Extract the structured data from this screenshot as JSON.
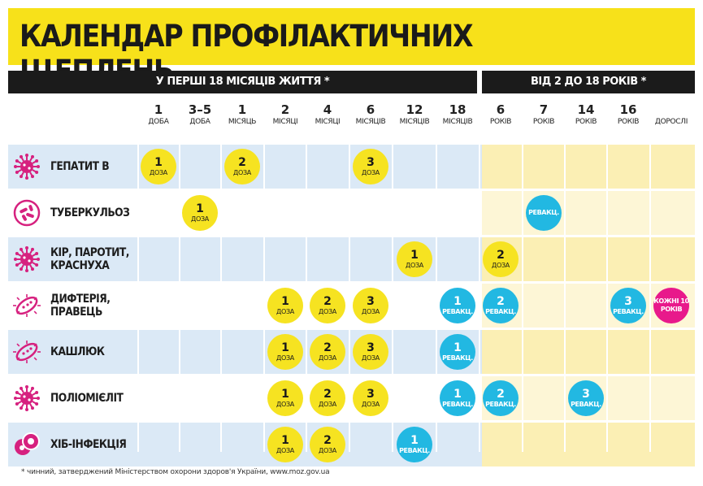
{
  "title": "КАЛЕНДАР ПРОФІЛАКТИЧНИХ ЩЕПЛЕНЬ",
  "sections": {
    "first": "У ПЕРШІ 18 МІСЯЦІВ ЖИТТЯ *",
    "second": "ВІД 2 ДО 18 РОКІВ *"
  },
  "columns": [
    {
      "num": "1",
      "unit": "ДОБА"
    },
    {
      "num": "3–5",
      "unit": "ДОБА"
    },
    {
      "num": "1",
      "unit": "МІСЯЦЬ"
    },
    {
      "num": "2",
      "unit": "МІСЯЦІ"
    },
    {
      "num": "4",
      "unit": "МІСЯЦІ"
    },
    {
      "num": "6",
      "unit": "МІСЯЦІВ"
    },
    {
      "num": "12",
      "unit": "МІСЯЦІВ"
    },
    {
      "num": "18",
      "unit": "МІСЯЦІВ"
    },
    {
      "num": "6",
      "unit": "РОКІВ"
    },
    {
      "num": "7",
      "unit": "РОКІВ"
    },
    {
      "num": "14",
      "unit": "РОКІВ"
    },
    {
      "num": "16",
      "unit": "РОКІВ"
    },
    {
      "num": "",
      "unit": "ДОРОСЛІ"
    }
  ],
  "rows": [
    {
      "name": [
        "ГЕПАТИТ В"
      ],
      "icon": "virus-icon",
      "doses": [
        {
          "col": 0,
          "num": "1",
          "label": "ДОЗА",
          "kind": "dose"
        },
        {
          "col": 2,
          "num": "2",
          "label": "ДОЗА",
          "kind": "dose"
        },
        {
          "col": 5,
          "num": "3",
          "label": "ДОЗА",
          "kind": "dose"
        }
      ]
    },
    {
      "name": [
        "ТУБЕРКУЛЬОЗ"
      ],
      "icon": "bacteria-icon",
      "doses": [
        {
          "col": 1,
          "num": "1",
          "label": "ДОЗА",
          "kind": "dose"
        },
        {
          "col": 9,
          "num": "",
          "label": "РЕВАКЦ.",
          "kind": "revac"
        }
      ]
    },
    {
      "name": [
        "КІР, ПАРОТИТ,",
        "КРАСНУХА"
      ],
      "icon": "virus-icon",
      "doses": [
        {
          "col": 6,
          "num": "1",
          "label": "ДОЗА",
          "kind": "dose"
        },
        {
          "col": 8,
          "num": "2",
          "label": "ДОЗА",
          "kind": "dose"
        }
      ]
    },
    {
      "name": [
        "ДИФТЕРІЯ,",
        "ПРАВЕЦЬ"
      ],
      "icon": "bacillus-icon",
      "doses": [
        {
          "col": 3,
          "num": "1",
          "label": "ДОЗА",
          "kind": "dose"
        },
        {
          "col": 4,
          "num": "2",
          "label": "ДОЗА",
          "kind": "dose"
        },
        {
          "col": 5,
          "num": "3",
          "label": "ДОЗА",
          "kind": "dose"
        },
        {
          "col": 7,
          "num": "1",
          "label": "РЕВАКЦ.",
          "kind": "revac"
        },
        {
          "col": 8,
          "num": "2",
          "label": "РЕВАКЦ.",
          "kind": "revac"
        },
        {
          "col": 11,
          "num": "3",
          "label": "РЕВАКЦ.",
          "kind": "revac"
        },
        {
          "col": 12,
          "num": "",
          "label": "КОЖНІ 10 РОКІВ",
          "kind": "adult"
        }
      ]
    },
    {
      "name": [
        "КАШЛЮК"
      ],
      "icon": "bacillus-icon",
      "doses": [
        {
          "col": 3,
          "num": "1",
          "label": "ДОЗА",
          "kind": "dose"
        },
        {
          "col": 4,
          "num": "2",
          "label": "ДОЗА",
          "kind": "dose"
        },
        {
          "col": 5,
          "num": "3",
          "label": "ДОЗА",
          "kind": "dose"
        },
        {
          "col": 7,
          "num": "1",
          "label": "РЕВАКЦ.",
          "kind": "revac"
        }
      ]
    },
    {
      "name": [
        "ПОЛІОМІЄЛІТ"
      ],
      "icon": "virus-icon",
      "doses": [
        {
          "col": 3,
          "num": "1",
          "label": "ДОЗА",
          "kind": "dose"
        },
        {
          "col": 4,
          "num": "2",
          "label": "ДОЗА",
          "kind": "dose"
        },
        {
          "col": 5,
          "num": "3",
          "label": "ДОЗА",
          "kind": "dose"
        },
        {
          "col": 7,
          "num": "1",
          "label": "РЕВАКЦ.",
          "kind": "revac"
        },
        {
          "col": 8,
          "num": "2",
          "label": "РЕВАКЦ.",
          "kind": "revac"
        },
        {
          "col": 10,
          "num": "3",
          "label": "РЕВАКЦ.",
          "kind": "revac"
        }
      ]
    },
    {
      "name": [
        "ХІБ-ІНФЕКЦІЯ"
      ],
      "icon": "cells-icon",
      "doses": [
        {
          "col": 3,
          "num": "1",
          "label": "ДОЗА",
          "kind": "dose"
        },
        {
          "col": 4,
          "num": "2",
          "label": "ДОЗА",
          "kind": "dose"
        },
        {
          "col": 6,
          "num": "1",
          "label": "РЕВАКЦ.",
          "kind": "revac"
        }
      ]
    }
  ],
  "footnote": "* чинний, затверджений Міністерством охорони здоров'я України, www.moz.gov.ua",
  "colors": {
    "yellow": "#f6e321",
    "blue": "#22b8e2",
    "pink": "#e8198b",
    "icon": "#d6217f",
    "row_shade": "#dbe9f6"
  }
}
